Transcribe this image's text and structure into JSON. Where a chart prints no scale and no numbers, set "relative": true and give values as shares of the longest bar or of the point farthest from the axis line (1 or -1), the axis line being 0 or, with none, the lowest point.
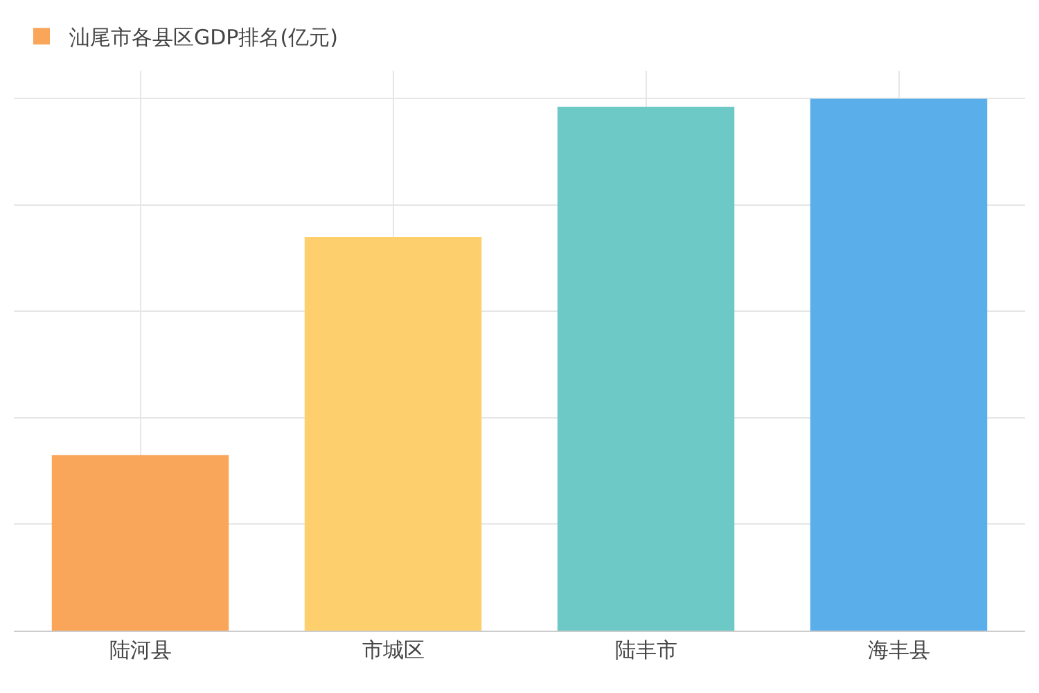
{
  "chart_data": {
    "type": "bar",
    "relative": true,
    "categories": [
      "陆河县",
      "市城区",
      "陆丰市",
      "海丰县"
    ],
    "series": [
      {
        "name": "汕尾市各县区GDP排名(亿元)",
        "colors": [
          "#f9a55a",
          "#fdd06d",
          "#6cc9c6",
          "#5aaeea"
        ],
        "values": [
          0.33,
          0.74,
          0.985,
          1
        ]
      }
    ],
    "grid": true,
    "legend": "top left"
  }
}
